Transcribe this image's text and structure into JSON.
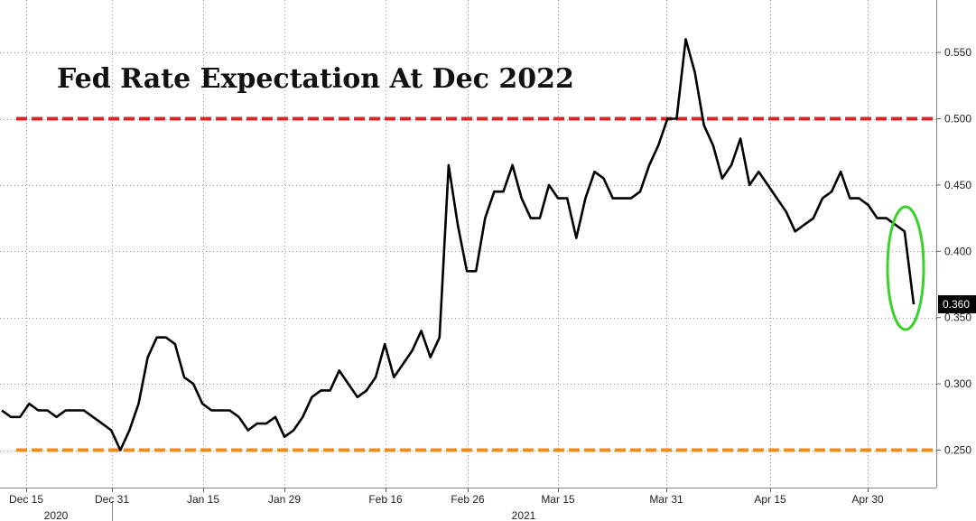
{
  "chart_data": {
    "type": "line",
    "title": "Fed Rate Expectation At Dec 2022",
    "xlabel": "",
    "ylabel": "",
    "ylim": [
      0.225,
      0.575
    ],
    "y_ticks": [
      "0.250",
      "0.300",
      "0.350",
      "0.400",
      "0.450",
      "0.500",
      "0.550"
    ],
    "x_tick_labels": [
      "Dec 15",
      "Dec 31",
      "Jan 15",
      "Jan 29",
      "Feb 16",
      "Feb 26",
      "Mar 15",
      "Mar 31",
      "Apr 15",
      "Apr 30"
    ],
    "year_labels": [
      "2020",
      "2021"
    ],
    "grid": true,
    "last_value_label": "0.360",
    "reference_lines": [
      {
        "value": 0.5,
        "color": "#d62728"
      },
      {
        "value": 0.25,
        "color": "#f08c1e"
      }
    ],
    "highlight_color": "#39d12a",
    "line_color": "#000000",
    "series": [
      {
        "values": [
          0.28,
          0.275,
          0.275,
          0.285,
          0.28,
          0.28,
          0.275,
          0.28,
          0.28,
          0.28,
          0.275,
          0.27,
          0.265,
          0.25,
          0.265,
          0.285,
          0.32,
          0.335,
          0.335,
          0.33,
          0.305,
          0.3,
          0.285,
          0.28,
          0.28,
          0.28,
          0.275,
          0.265,
          0.27,
          0.27,
          0.275,
          0.26,
          0.265,
          0.275,
          0.29,
          0.295,
          0.295,
          0.31,
          0.3,
          0.29,
          0.295,
          0.305,
          0.33,
          0.305,
          0.315,
          0.325,
          0.34,
          0.32,
          0.335,
          0.465,
          0.42,
          0.385,
          0.385,
          0.425,
          0.445,
          0.445,
          0.465,
          0.44,
          0.425,
          0.425,
          0.45,
          0.44,
          0.44,
          0.41,
          0.44,
          0.46,
          0.455,
          0.44,
          0.44,
          0.44,
          0.445,
          0.465,
          0.48,
          0.5,
          0.5,
          0.56,
          0.535,
          0.495,
          0.48,
          0.455,
          0.465,
          0.485,
          0.45,
          0.46,
          0.45,
          0.44,
          0.43,
          0.415,
          0.42,
          0.425,
          0.44,
          0.445,
          0.46,
          0.44,
          0.44,
          0.435,
          0.425,
          0.425,
          0.42,
          0.415,
          0.36
        ]
      }
    ]
  }
}
